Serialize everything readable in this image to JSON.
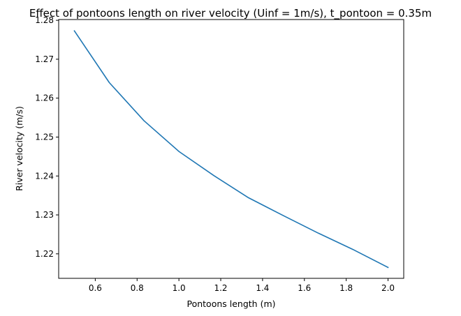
{
  "chart_data": {
    "type": "line",
    "title": "Effect of pontoons length on river velocity (Uinf = 1m/s), t_pontoon = 0.35m",
    "xlabel": "Pontoons length (m)",
    "ylabel": "River velocity (m/s)",
    "xlim": [
      0.425,
      2.075
    ],
    "ylim": [
      1.2137,
      1.2802
    ],
    "xticks": [
      0.6,
      0.8,
      1.0,
      1.2,
      1.4,
      1.6,
      1.8,
      2.0
    ],
    "xtick_labels": [
      "0.6",
      "0.8",
      "1.0",
      "1.2",
      "1.4",
      "1.6",
      "1.8",
      "2.0"
    ],
    "yticks": [
      1.22,
      1.23,
      1.24,
      1.25,
      1.26,
      1.27,
      1.28
    ],
    "ytick_labels": [
      "1.22",
      "1.23",
      "1.24",
      "1.25",
      "1.26",
      "1.27",
      "1.28"
    ],
    "grid": false,
    "legend": "none",
    "series": [
      {
        "color": "#1f77b4",
        "x": [
          0.5,
          0.667,
          0.833,
          1.0,
          1.167,
          1.333,
          1.5,
          1.667,
          1.833,
          2.0
        ],
        "y": [
          1.2773,
          1.264,
          1.2542,
          1.2463,
          1.2401,
          1.2344,
          1.2298,
          1.2253,
          1.2211,
          1.2165
        ]
      }
    ]
  }
}
